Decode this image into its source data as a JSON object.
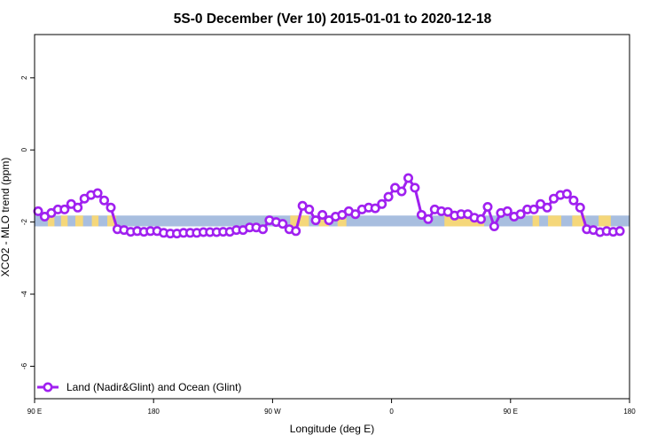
{
  "chart_data": {
    "type": "line",
    "title": "5S-0 December (Ver 10)   2015-01-01 to 2020-12-18",
    "xlabel": "Longitude (deg E)",
    "ylabel": "XCO2 - MLO trend (ppm)",
    "xlim": [
      -90,
      180
    ],
    "ylim": [
      -6.9,
      3.2
    ],
    "x_ticks": [
      {
        "value": -90,
        "label": "90 E"
      },
      {
        "value": -36,
        "label": "180"
      },
      {
        "value": 18,
        "label": "90 W"
      },
      {
        "value": 72,
        "label": "0"
      },
      {
        "value": 126,
        "label": "90 E"
      },
      {
        "value": 180,
        "label": "180"
      }
    ],
    "y_ticks": [
      {
        "value": 2,
        "label": "2"
      },
      {
        "value": 0,
        "label": "0"
      },
      {
        "value": -2,
        "label": "-2"
      },
      {
        "value": -4,
        "label": "-4"
      },
      {
        "value": -6,
        "label": "-6"
      }
    ],
    "grid": false,
    "legend_position": "bottom-left",
    "surface_band": {
      "y_range": [
        -2.12,
        -1.82
      ],
      "ocean_color": "#a8bedf",
      "land_color": "#f5d77a",
      "land_segments": [
        [
          -84,
          -81
        ],
        [
          -78,
          -75
        ],
        [
          -71.5,
          -68
        ],
        [
          -64,
          -61
        ],
        [
          -57,
          -53
        ],
        [
          26,
          34.5
        ],
        [
          39,
          43.5
        ],
        [
          47.5,
          51.5
        ],
        [
          96,
          114
        ],
        [
          136,
          139
        ],
        [
          143,
          149
        ],
        [
          154,
          160
        ],
        [
          166,
          171.5
        ]
      ]
    },
    "series": [
      {
        "name": "Land (Nadir&Glint) and Ocean (Glint)",
        "color": "#a020f0",
        "points": [
          [
            -88.4,
            -1.7
          ],
          [
            -85.4,
            -1.85
          ],
          [
            -82.4,
            -1.75
          ],
          [
            -79.4,
            -1.65
          ],
          [
            -76.4,
            -1.65
          ],
          [
            -73.4,
            -1.5
          ],
          [
            -70.4,
            -1.6
          ],
          [
            -67.4,
            -1.35
          ],
          [
            -64.4,
            -1.25
          ],
          [
            -61.4,
            -1.2
          ],
          [
            -58.4,
            -1.4
          ],
          [
            -55.4,
            -1.6
          ],
          [
            -52.4,
            -2.2
          ],
          [
            -49.4,
            -2.22
          ],
          [
            -46.4,
            -2.27
          ],
          [
            -43.4,
            -2.25
          ],
          [
            -40.4,
            -2.27
          ],
          [
            -37.4,
            -2.25
          ],
          [
            -34.4,
            -2.25
          ],
          [
            -31.4,
            -2.3
          ],
          [
            -28.4,
            -2.32
          ],
          [
            -25.4,
            -2.32
          ],
          [
            -22.4,
            -2.3
          ],
          [
            -19.4,
            -2.3
          ],
          [
            -16.4,
            -2.3
          ],
          [
            -13.4,
            -2.28
          ],
          [
            -10.4,
            -2.28
          ],
          [
            -7.4,
            -2.28
          ],
          [
            -4.4,
            -2.27
          ],
          [
            -1.4,
            -2.27
          ],
          [
            1.6,
            -2.22
          ],
          [
            4.6,
            -2.22
          ],
          [
            7.6,
            -2.15
          ],
          [
            10.6,
            -2.15
          ],
          [
            13.6,
            -2.2
          ],
          [
            16.6,
            -1.95
          ],
          [
            19.6,
            -2.0
          ],
          [
            22.6,
            -2.05
          ],
          [
            25.6,
            -2.2
          ],
          [
            28.6,
            -2.25
          ],
          [
            31.6,
            -1.55
          ],
          [
            34.6,
            -1.65
          ],
          [
            37.6,
            -1.95
          ],
          [
            40.6,
            -1.8
          ],
          [
            43.6,
            -1.95
          ],
          [
            46.6,
            -1.85
          ],
          [
            49.6,
            -1.8
          ],
          [
            52.6,
            -1.7
          ],
          [
            55.6,
            -1.78
          ],
          [
            58.6,
            -1.65
          ],
          [
            61.6,
            -1.6
          ],
          [
            64.6,
            -1.62
          ],
          [
            67.6,
            -1.5
          ],
          [
            70.6,
            -1.3
          ],
          [
            73.6,
            -1.05
          ],
          [
            76.6,
            -1.15
          ],
          [
            79.6,
            -0.78
          ],
          [
            82.6,
            -1.05
          ],
          [
            85.6,
            -1.8
          ],
          [
            88.6,
            -1.92
          ],
          [
            91.6,
            -1.65
          ],
          [
            94.6,
            -1.7
          ],
          [
            97.6,
            -1.72
          ],
          [
            100.6,
            -1.82
          ],
          [
            103.6,
            -1.78
          ],
          [
            106.6,
            -1.78
          ],
          [
            109.6,
            -1.88
          ],
          [
            112.6,
            -1.92
          ],
          [
            115.6,
            -1.58
          ],
          [
            118.6,
            -2.12
          ],
          [
            121.6,
            -1.75
          ],
          [
            124.6,
            -1.7
          ],
          [
            127.6,
            -1.85
          ],
          [
            130.6,
            -1.78
          ],
          [
            133.6,
            -1.65
          ],
          [
            136.6,
            -1.65
          ],
          [
            139.6,
            -1.5
          ],
          [
            142.6,
            -1.6
          ],
          [
            145.6,
            -1.35
          ],
          [
            148.6,
            -1.25
          ],
          [
            151.6,
            -1.22
          ],
          [
            154.6,
            -1.4
          ],
          [
            157.6,
            -1.6
          ],
          [
            160.6,
            -2.2
          ],
          [
            163.6,
            -2.22
          ],
          [
            166.6,
            -2.28
          ],
          [
            169.6,
            -2.25
          ],
          [
            172.6,
            -2.27
          ],
          [
            175.6,
            -2.25
          ]
        ]
      }
    ]
  }
}
